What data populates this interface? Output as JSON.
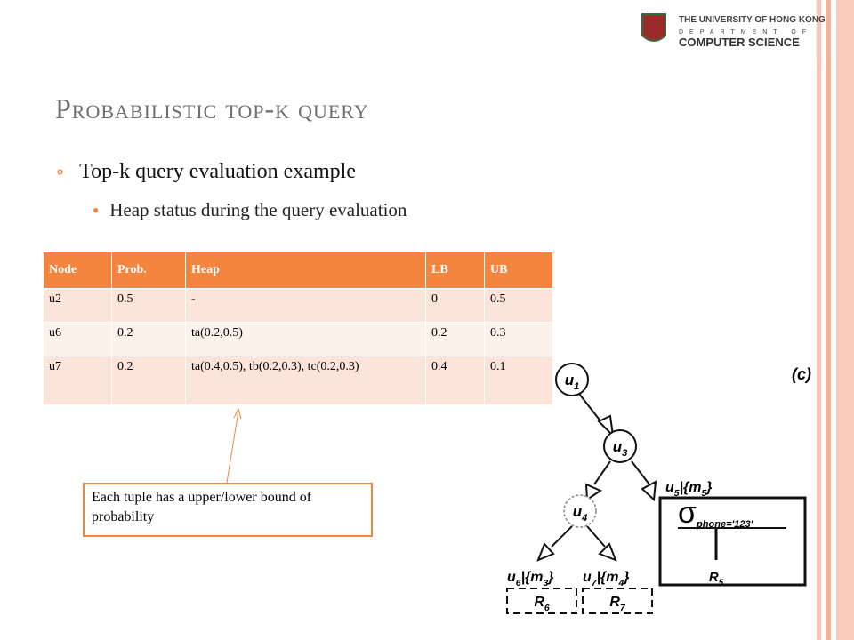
{
  "logo": {
    "line1": "THE UNIVERSITY OF HONG KONG",
    "line2": "DEPARTMENT OF",
    "line3": "COMPUTER SCIENCE"
  },
  "title": "Probabilistic top-k query",
  "bullets": [
    {
      "text": "Top-k query evaluation example",
      "sub": [
        "Heap status during the query evaluation"
      ]
    }
  ],
  "table": {
    "header": [
      "Node",
      "Prob.",
      "Heap",
      "LB",
      "UB"
    ],
    "rows": [
      [
        "u2",
        "0.5",
        "-",
        "0",
        "0.5"
      ],
      [
        "u6",
        "0.2",
        "ta(0.2,0.5)",
        "0.2",
        "0.3"
      ],
      [
        "u7",
        "0.2",
        "ta(0.4,0.5), tb(0.2,0.3), tc(0.2,0.3)",
        "0.4",
        "0.1"
      ]
    ]
  },
  "callout": "Each tuple has a upper/lower bound of probability",
  "diagram": {
    "label": "(c)",
    "nodes": [
      [
        "u",
        "1"
      ],
      [
        "u",
        "3"
      ],
      [
        "u",
        "4"
      ]
    ],
    "edge_labels": [
      [
        "u",
        "5",
        "|{m",
        "5",
        "}"
      ],
      [
        "u",
        "6",
        "|{m",
        "3",
        "}"
      ],
      [
        "u",
        "7",
        "|{m",
        "4",
        "}"
      ]
    ],
    "selection": [
      "σ",
      "phone='123'"
    ],
    "relations": [
      [
        "R",
        "5"
      ],
      [
        "R",
        "6"
      ],
      [
        "R",
        "7"
      ]
    ]
  }
}
